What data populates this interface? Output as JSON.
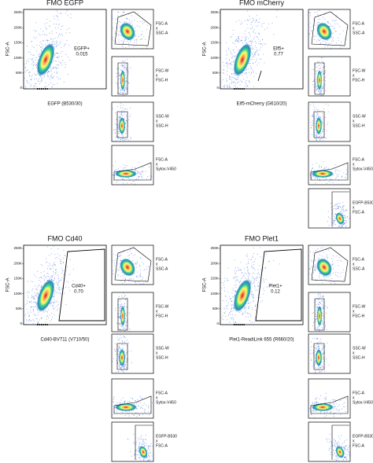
{
  "panels": [
    {
      "title": "FMO EGFP",
      "y_label": "FSC-A",
      "x_label": "EGFP (B530/30)",
      "gate_name": "EGFP+",
      "gate_value": "0.015",
      "yticks": [
        "250K",
        "200K",
        "150K",
        "100K",
        "50K",
        "0"
      ],
      "side_plots": [
        [
          "FSC-A",
          "x",
          "SSC-A"
        ],
        [
          "FSC-W",
          "x",
          "FSC-H"
        ],
        [
          "SSC-W",
          "x",
          "SSC-H"
        ],
        [
          "FSC-A",
          "x",
          "Sytox-V450"
        ]
      ]
    },
    {
      "title": "FMO mCherry",
      "y_label": "FSC-A",
      "x_label": "Elf5-mCherry (G610/20)",
      "gate_name": "Elf5+",
      "gate_value": "0.77",
      "yticks": [
        "250K",
        "200K",
        "150K",
        "100K",
        "50K",
        "0"
      ],
      "side_plots": [
        [
          "FSC-A",
          "x",
          "SSC-A"
        ],
        [
          "FSC-W",
          "x",
          "FSC-H"
        ],
        [
          "SSC-W",
          "x",
          "SSC-H"
        ],
        [
          "FSC-A",
          "x",
          "Sytox-V450"
        ],
        [
          "EGFP-B530",
          "x",
          "FSC-A"
        ]
      ]
    },
    {
      "title": "FMO Cd40",
      "y_label": "FSC-A",
      "x_label": "Cd40-BV711 (V710/50)",
      "gate_name": "Cd40+",
      "gate_value": "0.70",
      "yticks": [
        "250K",
        "200K",
        "150K",
        "100K",
        "50K",
        "0"
      ],
      "side_plots": [
        [
          "FSC-A",
          "x",
          "SSC-A"
        ],
        [
          "FSC-W",
          "x",
          "FSC-H"
        ],
        [
          "SSC-W",
          "x",
          "SSC-H"
        ],
        [
          "FSC-A",
          "x",
          "Sytox-V450"
        ],
        [
          "EGFP-B530",
          "x",
          "FSC-A"
        ]
      ]
    },
    {
      "title": "FMO Plet1",
      "y_label": "FSC-A",
      "x_label": "Plet1-ReadiLink 655 (R660/20)",
      "gate_name": "Plet1+",
      "gate_value": "0.12",
      "yticks": [
        "250K",
        "200K",
        "150K",
        "100K",
        "50K",
        "0"
      ],
      "side_plots": [
        [
          "FSC-A",
          "x",
          "SSC-A"
        ],
        [
          "FSC-W",
          "x",
          "FSC-H"
        ],
        [
          "SSC-W",
          "x",
          "SSC-H"
        ],
        [
          "FSC-A",
          "x",
          "Sytox-V450"
        ],
        [
          "EGFP-B530",
          "x",
          "FSC-A"
        ]
      ]
    }
  ]
}
